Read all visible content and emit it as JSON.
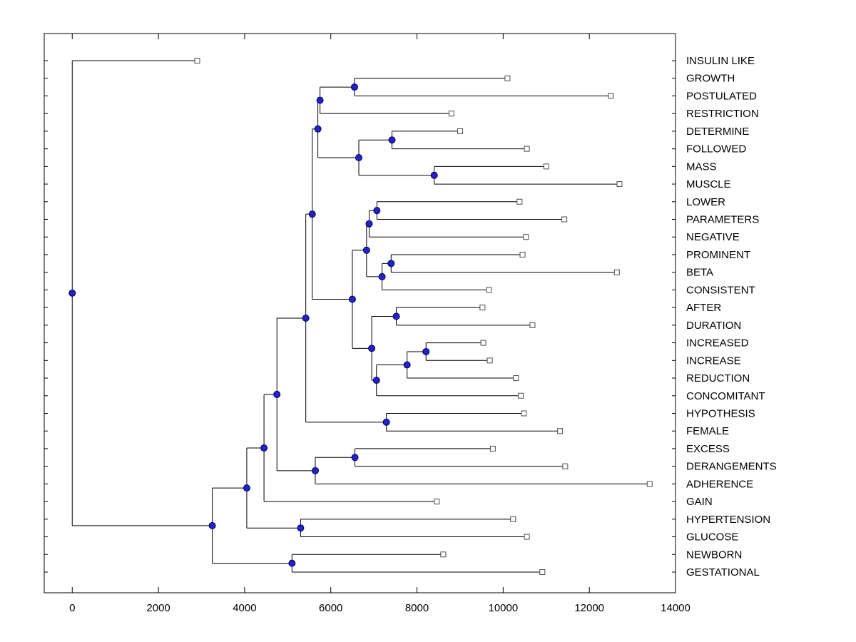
{
  "figure": {
    "background": "#ffffff",
    "title": ""
  },
  "chart_data": {
    "type": "dendrogram",
    "orientation": "horizontal-root-left",
    "title": "",
    "xlabel": "",
    "ylabel": "",
    "xlim": [
      -650,
      14000
    ],
    "x_ticks": [
      0,
      2000,
      4000,
      6000,
      8000,
      10000,
      12000,
      14000
    ],
    "grid": false,
    "legend": null,
    "leaf_order": [
      "INSULIN LIKE",
      "GROWTH",
      "POSTULATED",
      "RESTRICTION",
      "DETERMINE",
      "FOLLOWED",
      "MASS",
      "MUSCLE",
      "LOWER",
      "PARAMETERS",
      "NEGATIVE",
      "PROMINENT",
      "BETA",
      "CONSISTENT",
      "AFTER",
      "DURATION",
      "INCREASED",
      "INCREASE",
      "REDUCTION",
      "CONCOMITANT",
      "HYPOTHESIS",
      "FEMALE",
      "EXCESS",
      "DERANGEMENTS",
      "ADHERENCE",
      "GAIN",
      "HYPERTENSION",
      "GLUCOSE",
      "NEWBORN",
      "GESTATIONAL"
    ],
    "tree": {
      "dist": 0,
      "children": [
        {
          "label": "INSULIN LIKE",
          "dist": 2900
        },
        {
          "dist": 3250,
          "children": [
            {
              "dist": 4050,
              "children": [
                {
                  "dist": 4450,
                  "children": [
                    {
                      "dist": 4750,
                      "children": [
                        {
                          "dist": 5420,
                          "children": [
                            {
                              "dist": 5570,
                              "children": [
                                {
                                  "dist": 5700,
                                  "children": [
                                    {
                                      "dist": 5750,
                                      "children": [
                                        {
                                          "dist": 6550,
                                          "children": [
                                            {
                                              "label": "GROWTH",
                                              "dist": 10100
                                            },
                                            {
                                              "label": "POSTULATED",
                                              "dist": 12500
                                            }
                                          ]
                                        },
                                        {
                                          "label": "RESTRICTION",
                                          "dist": 8800
                                        }
                                      ]
                                    },
                                    {
                                      "dist": 6650,
                                      "children": [
                                        {
                                          "dist": 7420,
                                          "children": [
                                            {
                                              "label": "DETERMINE",
                                              "dist": 9000
                                            },
                                            {
                                              "label": "FOLLOWED",
                                              "dist": 10550
                                            }
                                          ]
                                        },
                                        {
                                          "dist": 8400,
                                          "children": [
                                            {
                                              "label": "MASS",
                                              "dist": 11000
                                            },
                                            {
                                              "label": "MUSCLE",
                                              "dist": 12700
                                            }
                                          ]
                                        }
                                      ]
                                    }
                                  ]
                                },
                                {
                                  "dist": 6500,
                                  "children": [
                                    {
                                      "dist": 6830,
                                      "children": [
                                        {
                                          "dist": 6890,
                                          "children": [
                                            {
                                              "dist": 7070,
                                              "children": [
                                                {
                                                  "label": "LOWER",
                                                  "dist": 10380
                                                },
                                                {
                                                  "label": "PARAMETERS",
                                                  "dist": 11420
                                                }
                                              ]
                                            },
                                            {
                                              "label": "NEGATIVE",
                                              "dist": 10530
                                            }
                                          ]
                                        },
                                        {
                                          "dist": 7190,
                                          "children": [
                                            {
                                              "dist": 7400,
                                              "children": [
                                                {
                                                  "label": "PROMINENT",
                                                  "dist": 10450
                                                },
                                                {
                                                  "label": "BETA",
                                                  "dist": 12640
                                                }
                                              ]
                                            },
                                            {
                                              "label": "CONSISTENT",
                                              "dist": 9670
                                            }
                                          ]
                                        }
                                      ]
                                    },
                                    {
                                      "dist": 6950,
                                      "children": [
                                        {
                                          "dist": 7520,
                                          "children": [
                                            {
                                              "label": "AFTER",
                                              "dist": 9520
                                            },
                                            {
                                              "label": "DURATION",
                                              "dist": 10680
                                            }
                                          ]
                                        },
                                        {
                                          "dist": 7060,
                                          "children": [
                                            {
                                              "dist": 7770,
                                              "children": [
                                                {
                                                  "dist": 8210,
                                                  "children": [
                                                    {
                                                      "label": "INCREASED",
                                                      "dist": 9540
                                                    },
                                                    {
                                                      "label": "INCREASE",
                                                      "dist": 9690
                                                    }
                                                  ]
                                                },
                                                {
                                                  "label": "REDUCTION",
                                                  "dist": 10300
                                                }
                                              ]
                                            },
                                            {
                                              "label": "CONCOMITANT",
                                              "dist": 10410
                                            }
                                          ]
                                        }
                                      ]
                                    }
                                  ]
                                }
                              ]
                            },
                            {
                              "dist": 7290,
                              "children": [
                                {
                                  "label": "HYPOTHESIS",
                                  "dist": 10480
                                },
                                {
                                  "label": "FEMALE",
                                  "dist": 11320
                                }
                              ]
                            }
                          ]
                        },
                        {
                          "dist": 5640,
                          "children": [
                            {
                              "dist": 6560,
                              "children": [
                                {
                                  "label": "EXCESS",
                                  "dist": 9760
                                },
                                {
                                  "label": "DERANGEMENTS",
                                  "dist": 11440
                                }
                              ]
                            },
                            {
                              "label": "ADHERENCE",
                              "dist": 13400
                            }
                          ]
                        }
                      ]
                    },
                    {
                      "label": "GAIN",
                      "dist": 8460
                    }
                  ]
                },
                {
                  "dist": 5300,
                  "children": [
                    {
                      "label": "HYPERTENSION",
                      "dist": 10230
                    },
                    {
                      "label": "GLUCOSE",
                      "dist": 10550
                    }
                  ]
                }
              ]
            },
            {
              "dist": 5100,
              "children": [
                {
                  "label": "NEWBORN",
                  "dist": 8610
                },
                {
                  "label": "GESTATIONAL",
                  "dist": 10910
                }
              ]
            }
          ]
        }
      ]
    },
    "style": {
      "branch_color": "#000000",
      "branch_node_marker": "filled-circle",
      "branch_node_fill": "#2222cc",
      "branch_node_stroke": "#00004d",
      "leaf_marker": "open-square",
      "leaf_fill": "#ffffff",
      "leaf_stroke": "#4d4d4d",
      "label_color": "#000000",
      "axis_color": "#000000"
    }
  }
}
